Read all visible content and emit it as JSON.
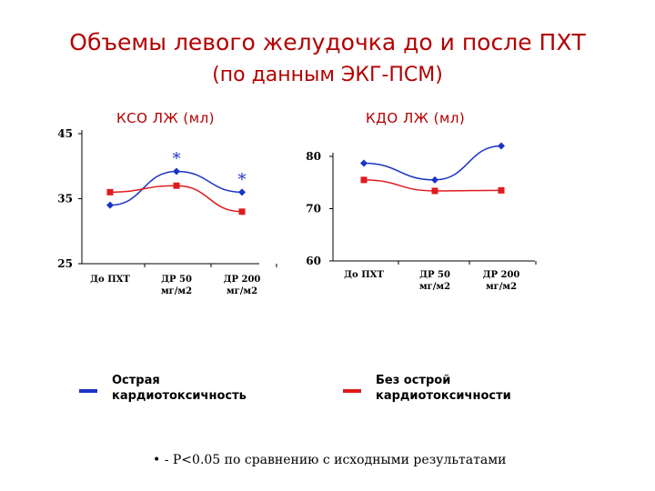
{
  "title_line1": "Объемы левого желудочка до и после ПХТ",
  "title_line2": "(по данным ЭКГ-ПСМ)",
  "colors": {
    "title": "#b40000",
    "series_blue": "#1a33c8",
    "series_red": "#e01b1b"
  },
  "chart_data": [
    {
      "type": "line",
      "title": "КСО ЛЖ (мл)",
      "categories": [
        [
          "До ПХТ"
        ],
        [
          "ДР 50",
          "мг/м2"
        ],
        [
          "ДР 200",
          "мг/м2"
        ]
      ],
      "yticks": [
        "45",
        "35",
        "25"
      ],
      "ylim": [
        25,
        45
      ],
      "series": [
        {
          "name": "Острая кардиотоксичность",
          "color": "#1a33c8",
          "marker": "diamond",
          "values": [
            34,
            39.2,
            36
          ]
        },
        {
          "name": "Без острой кардиотоксичности",
          "color": "#e01b1b",
          "marker": "square",
          "values": [
            36,
            37,
            33
          ]
        }
      ],
      "annotations": [
        {
          "text": "*",
          "category_index": 1
        },
        {
          "text": "*",
          "category_index": 2
        }
      ]
    },
    {
      "type": "line",
      "title": "КДО ЛЖ (мл)",
      "categories": [
        [
          "До ПХТ"
        ],
        [
          "ДР 50",
          "мг/м2"
        ],
        [
          "ДР 200",
          "мг/м2"
        ]
      ],
      "yticks": [
        "80",
        "70",
        "60"
      ],
      "ylim": [
        60,
        80
      ],
      "series": [
        {
          "name": "Острая кардиотоксичность",
          "color": "#1a33c8",
          "marker": "diamond",
          "values": [
            78.7,
            75.5,
            82
          ]
        },
        {
          "name": "Без острой кардиотоксичности",
          "color": "#e01b1b",
          "marker": "square",
          "values": [
            75.5,
            73.4,
            73.5
          ]
        }
      ],
      "annotations": []
    }
  ],
  "legend": [
    {
      "label_line1": "Острая",
      "label_line2": "кардиотоксичность",
      "color": "#1a33c8"
    },
    {
      "label_line1": "Без острой",
      "label_line2": "кардиотоксичности",
      "color": "#e01b1b"
    }
  ],
  "footnote": "• - P<0.05 по сравнению с исходными результатами"
}
